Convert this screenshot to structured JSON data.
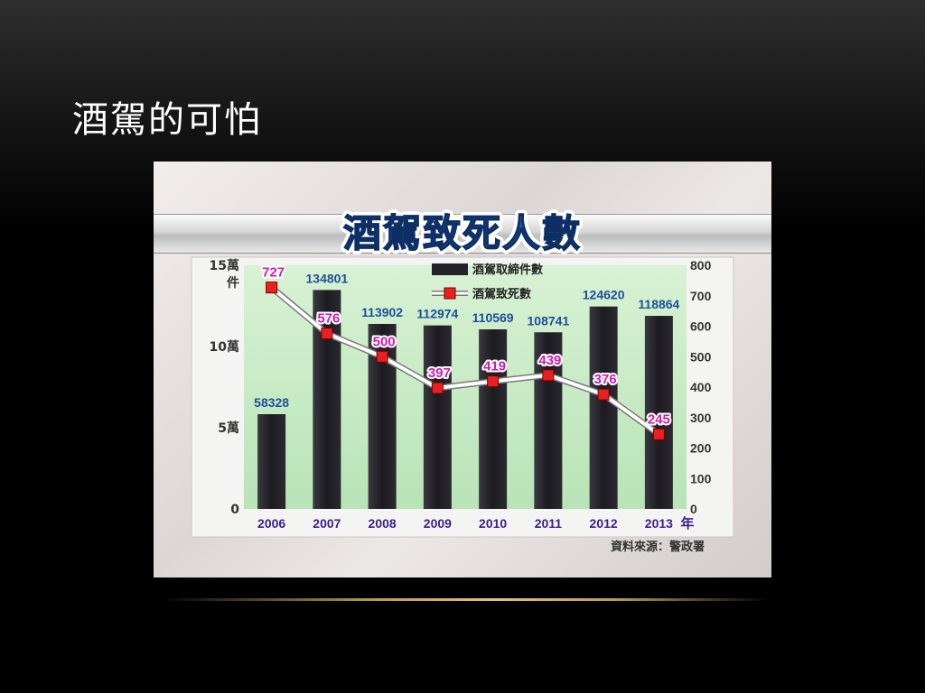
{
  "slide": {
    "title": "酒駕的可怕"
  },
  "chart_data": {
    "type": "bar+line",
    "title": "酒駕致死人數",
    "categories": [
      "2006",
      "2007",
      "2008",
      "2009",
      "2010",
      "2011",
      "2012",
      "2013"
    ],
    "x_unit": "年",
    "series": [
      {
        "name": "酒駕取締件數",
        "type": "bar",
        "axis": "left",
        "color": "#25232a",
        "values": [
          58328,
          134801,
          113902,
          112974,
          110569,
          108741,
          124620,
          118864
        ],
        "label_color": "#1e4f9a"
      },
      {
        "name": "酒駕致死數",
        "type": "line",
        "axis": "right",
        "color": "#e82020",
        "values": [
          727,
          576,
          500,
          397,
          419,
          439,
          376,
          245
        ],
        "label_color": "#d01ab0"
      }
    ],
    "y_left": {
      "range": [
        0,
        150000
      ],
      "ticks": [
        {
          "value": 0,
          "label": "0"
        },
        {
          "value": 50000,
          "label": "5萬"
        },
        {
          "value": 100000,
          "label": "10萬"
        },
        {
          "value": 150000,
          "label": "15萬"
        }
      ],
      "unit_label": "件"
    },
    "y_right": {
      "range": [
        0,
        800
      ],
      "ticks": [
        0,
        100,
        200,
        300,
        400,
        500,
        600,
        700,
        800
      ]
    },
    "legend": "top-center",
    "source": "資料來源：警政署",
    "plot_background": "#c8ecc6"
  }
}
